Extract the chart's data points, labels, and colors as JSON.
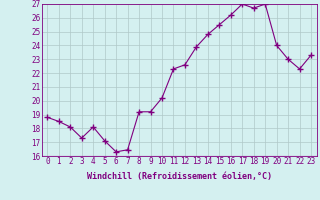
{
  "x": [
    0,
    1,
    2,
    3,
    4,
    5,
    6,
    7,
    8,
    9,
    10,
    11,
    12,
    13,
    14,
    15,
    16,
    17,
    18,
    19,
    20,
    21,
    22,
    23
  ],
  "y": [
    18.8,
    18.5,
    18.1,
    17.3,
    18.1,
    17.1,
    16.3,
    16.45,
    19.2,
    19.2,
    20.2,
    22.3,
    22.6,
    23.9,
    24.8,
    25.5,
    26.2,
    27.0,
    26.7,
    27.0,
    24.0,
    23.0,
    22.3,
    23.3
  ],
  "ylim": [
    16,
    27
  ],
  "yticks": [
    16,
    17,
    18,
    19,
    20,
    21,
    22,
    23,
    24,
    25,
    26,
    27
  ],
  "xticks": [
    0,
    1,
    2,
    3,
    4,
    5,
    6,
    7,
    8,
    9,
    10,
    11,
    12,
    13,
    14,
    15,
    16,
    17,
    18,
    19,
    20,
    21,
    22,
    23
  ],
  "xlabel": "Windchill (Refroidissement éolien,°C)",
  "line_color": "#800080",
  "marker": "+",
  "marker_size": 4,
  "bg_color": "#d4f0f0",
  "grid_color": "#b0c8c8",
  "font_family": "monospace",
  "font_size_ticks": 5.5,
  "font_size_xlabel": 6.0
}
